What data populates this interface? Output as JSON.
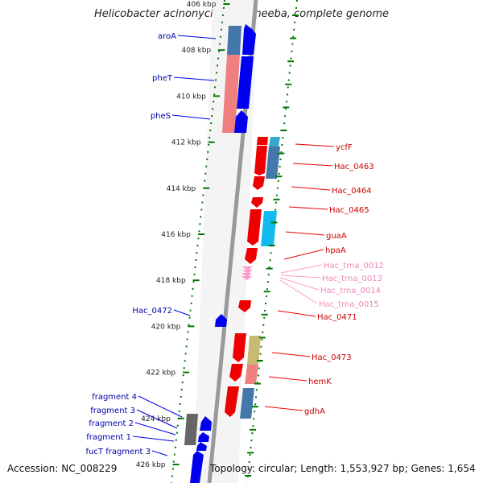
{
  "title": "Helicobacter acinonychis str. Sheeba, complete genome",
  "footer": {
    "accession": "Accession: NC_008229",
    "topology": "Topology: circular; Length: 1,553,927 bp; Genes: 1,654"
  },
  "colors": {
    "forward_gene": "#0000ee",
    "reverse_gene": "#ee0000",
    "trna": "#ff99cc",
    "forward_label": "#0000aa",
    "reverse_label": "#cc0000",
    "trna_label": "#ee88bb",
    "tick": "#007700",
    "backbone": "#999999"
  },
  "ruler": {
    "unit": "kbp",
    "ticks": [
      {
        "kbp": 406,
        "label": "406 kbp"
      },
      {
        "kbp": 408,
        "label": "408 kbp"
      },
      {
        "kbp": 410,
        "label": "410 kbp"
      },
      {
        "kbp": 412,
        "label": "412 kbp"
      },
      {
        "kbp": 414,
        "label": "414 kbp"
      },
      {
        "kbp": 416,
        "label": "416 kbp"
      },
      {
        "kbp": 418,
        "label": "418 kbp"
      },
      {
        "kbp": 420,
        "label": "420 kbp"
      },
      {
        "kbp": 422,
        "label": "422 kbp"
      },
      {
        "kbp": 424,
        "label": "424 kbp"
      },
      {
        "kbp": 426,
        "label": "426 kbp"
      }
    ]
  },
  "forward_genes": [
    {
      "name": "aroA"
    },
    {
      "name": "pheT"
    },
    {
      "name": "pheS"
    },
    {
      "name": "Hac_0472"
    },
    {
      "name": "fragment 4"
    },
    {
      "name": "fragment 3"
    },
    {
      "name": "fragment 2"
    },
    {
      "name": "fragment 1"
    },
    {
      "name": "fucT fragment 3"
    }
  ],
  "reverse_genes": [
    {
      "name": "ycfF"
    },
    {
      "name": "Hac_0463"
    },
    {
      "name": "Hac_0464"
    },
    {
      "name": "Hac_0465"
    },
    {
      "name": "guaA"
    },
    {
      "name": "hpaA"
    },
    {
      "name": "Hac_0471"
    },
    {
      "name": "Hac_0473"
    },
    {
      "name": "hemK"
    },
    {
      "name": "gdhA"
    }
  ],
  "trna_genes": [
    {
      "name": "Hac_trna_0012"
    },
    {
      "name": "Hac_trna_0013"
    },
    {
      "name": "Hac_trna_0014"
    },
    {
      "name": "Hac_trna_0015"
    }
  ]
}
